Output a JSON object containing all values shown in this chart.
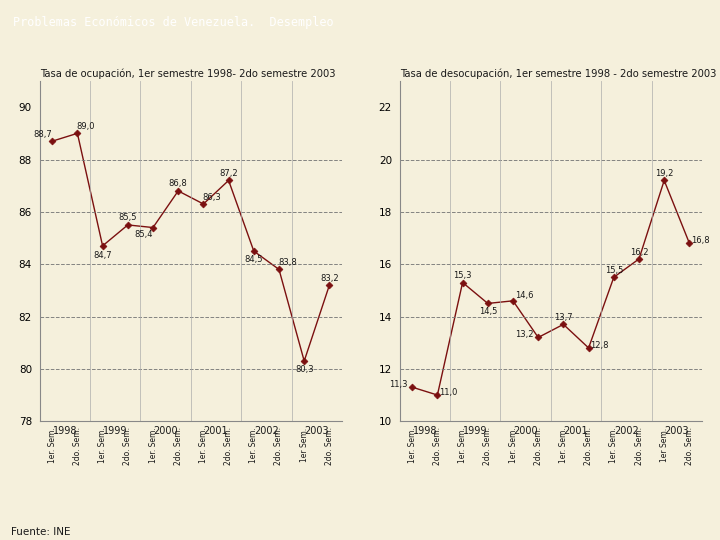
{
  "title": "Problemas Económicos de Venezuela.  Desempleo",
  "title_bg": "#8B8A56",
  "title_bar_color": "#6B0000",
  "background_color": "#F5F0DC",
  "left_chart_title": "Tasa de ocupación, 1er semestre 1998- 2do semestre 2003",
  "left_values": [
    88.7,
    89.0,
    84.7,
    85.5,
    85.4,
    86.8,
    86.3,
    87.2,
    84.5,
    83.8,
    80.3,
    83.2
  ],
  "left_str": [
    "88,7",
    "89,0",
    "84,7",
    "85,5",
    "85,4",
    "86,8",
    "86,3",
    "87,2",
    "84,5",
    "83,8",
    "80,3",
    "83,2"
  ],
  "left_ylim": [
    78,
    91
  ],
  "left_yticks": [
    78,
    80,
    82,
    84,
    86,
    88,
    90
  ],
  "left_ytick_labels": [
    "78",
    "80",
    "82",
    "84",
    "86",
    "88",
    "90"
  ],
  "left_grid_values": [
    80,
    82,
    84,
    86,
    88
  ],
  "right_chart_title": "Tasa de desocupación, 1er semestre 1998 - 2do semestre 2003",
  "right_values": [
    11.3,
    11.0,
    15.3,
    14.5,
    14.6,
    13.2,
    13.7,
    12.8,
    15.5,
    16.2,
    19.2,
    16.8
  ],
  "right_str": [
    "11,3",
    "11,0",
    "15,3",
    "14,5",
    "14,6",
    "13,2",
    "13,7",
    "12,8",
    "15,5",
    "16,2",
    "19,2",
    "16,8"
  ],
  "right_ylim": [
    10,
    23
  ],
  "right_yticks": [
    10,
    12,
    14,
    16,
    18,
    20,
    22
  ],
  "right_ytick_labels": [
    "10",
    "12",
    "14",
    "16",
    "18",
    "20",
    "22"
  ],
  "right_grid_values": [
    12,
    14,
    16,
    18,
    20
  ],
  "x_labels": [
    "1er. Sem.",
    "2do. Sem.",
    "1er. Sem.",
    "2do. Sem.",
    "1er. Sem.",
    "2do. Sem.",
    "1er. Sem.",
    "2do. Sem.",
    "1er. Sem.",
    "2do. Sem.",
    "1er Sem.",
    "2do. Sem."
  ],
  "year_labels": [
    "1998",
    "1999",
    "2000",
    "2001",
    "2002",
    "2003"
  ],
  "year_positions": [
    0.5,
    2.5,
    4.5,
    6.5,
    8.5,
    10.5
  ],
  "source": "Fuente: INE",
  "line_color": "#7B1010",
  "marker_color": "#7B1010",
  "font_color": "#1A1A1A",
  "grid_color": "#777777",
  "axis_color": "#888888",
  "sep_color": "#AAAAAA"
}
